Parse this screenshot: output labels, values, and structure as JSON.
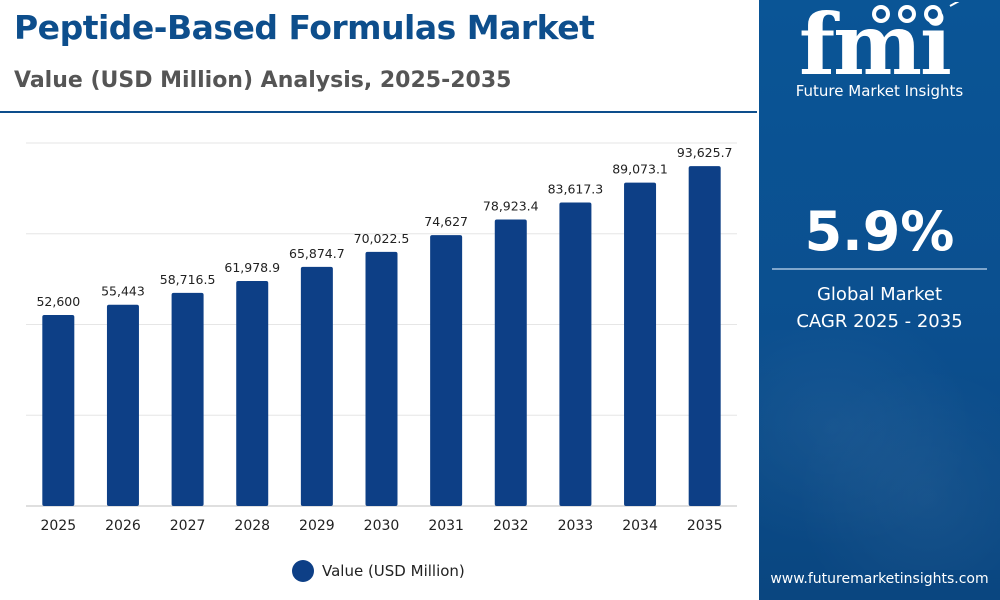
{
  "chart_data": {
    "type": "bar",
    "title": "Peptide-Based Formulas Market",
    "subtitle": "Value (USD Million) Analysis, 2025-2035",
    "categories": [
      "2025",
      "2026",
      "2027",
      "2028",
      "2029",
      "2030",
      "2031",
      "2032",
      "2033",
      "2034",
      "2035"
    ],
    "series": [
      {
        "name": "Value (USD Million)",
        "values": [
          52600,
          55443,
          58716.5,
          61978.9,
          65874.7,
          70022.5,
          74627,
          78923.4,
          83617.3,
          89073.1,
          93625.7
        ],
        "labels": [
          "52,600",
          "55,443",
          "58,716.5",
          "61,978.9",
          "65,874.7",
          "70,022.5",
          "74,627",
          "78,923.4",
          "83,617.3",
          "89,073.1",
          "93,625.7"
        ]
      }
    ],
    "ylim": [
      0,
      100000
    ],
    "grid": true,
    "legend": "bottom-center",
    "bar_color": "#0d3f86"
  },
  "sidebar": {
    "logo_text": "fmi",
    "logo_caption": "Future Market Insights",
    "cagr_value": "5.9%",
    "cagr_label_line1": "Global Market",
    "cagr_label_line2": "CAGR 2025 - 2035",
    "website": "www.futuremarketinsights.com",
    "background_color": "#0b4f8f"
  }
}
